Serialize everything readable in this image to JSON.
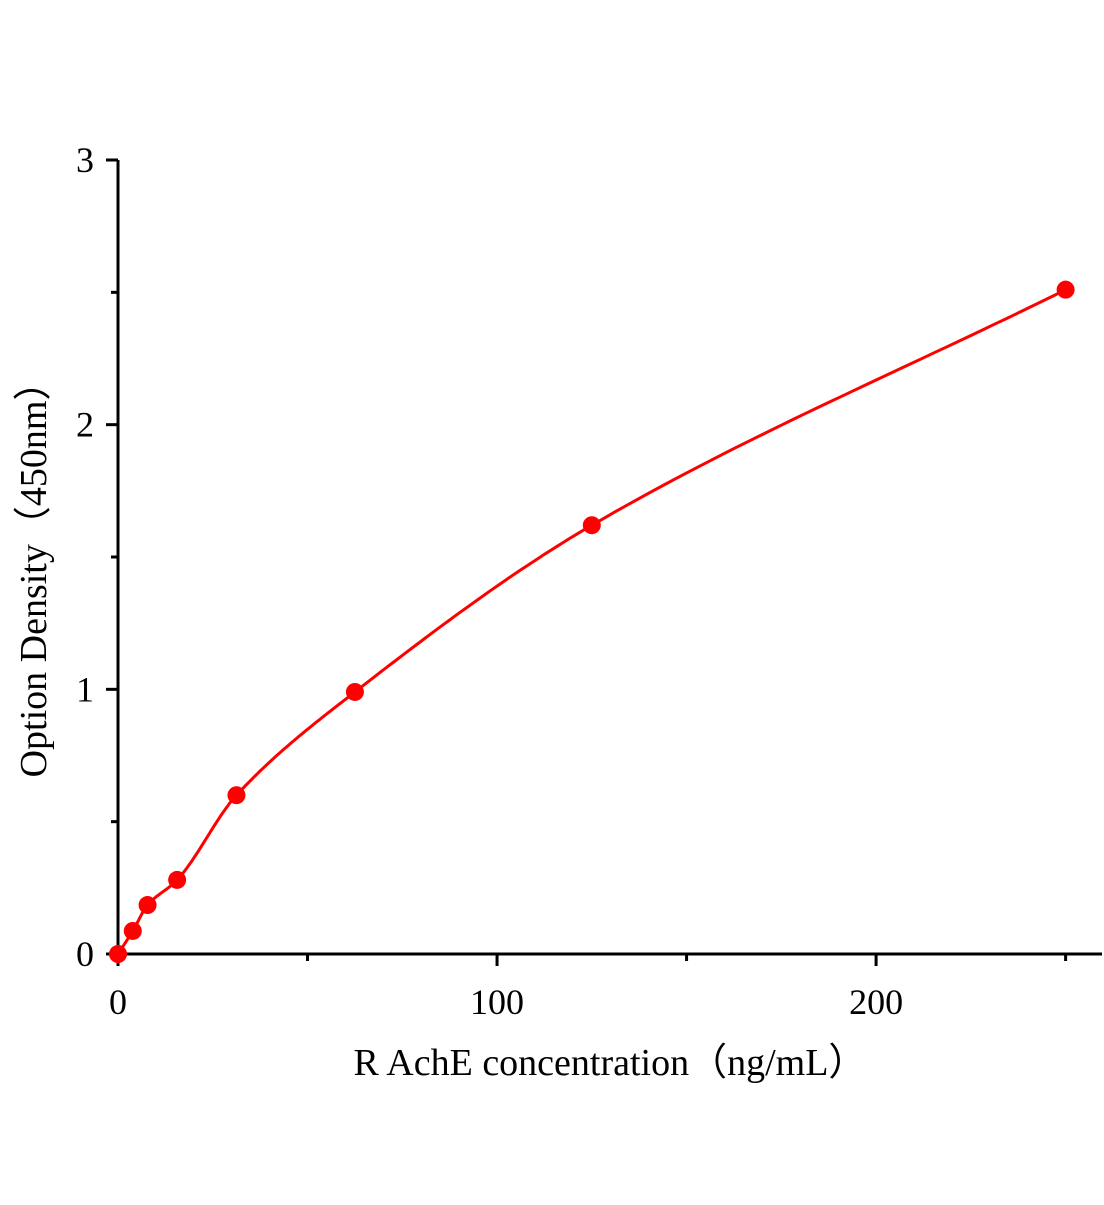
{
  "chart_data": {
    "type": "scatter",
    "title": "",
    "xlabel": "R AchE  concentration（ng/mL）",
    "ylabel": "Option Density（450nm）",
    "xlim": [
      0,
      259.6
    ],
    "ylim": [
      0,
      3
    ],
    "x_ticks": [
      0,
      100,
      200
    ],
    "x_tick_labels": [
      "0",
      "100",
      "200"
    ],
    "x_minor_ticks": [
      50,
      150,
      250
    ],
    "y_ticks": [
      0,
      1,
      2,
      3
    ],
    "y_tick_labels": [
      "0",
      "1",
      "2",
      "3"
    ],
    "y_minor_ticks": [
      0.5,
      1.5,
      2.5
    ],
    "grid": false,
    "series": [
      {
        "x": [
          0,
          3.9,
          7.8,
          15.6,
          31.25,
          62.5,
          125,
          250
        ],
        "y": [
          0,
          0.087,
          0.185,
          0.28,
          0.6,
          0.99,
          1.62,
          2.51
        ],
        "color": "#ff0000",
        "fit_curve": true
      }
    ]
  }
}
